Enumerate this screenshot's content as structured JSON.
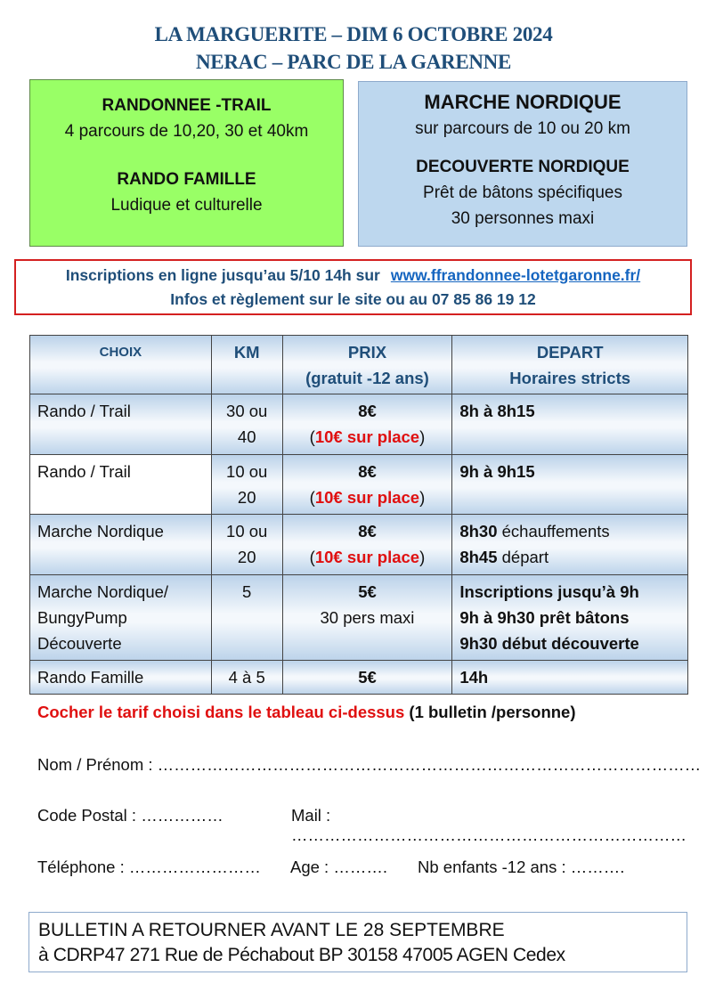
{
  "header": {
    "line1": "LA MARGUERITE – DIM 6  OCTOBRE 2024",
    "line2": "NERAC – PARC DE LA GARENNE"
  },
  "green_box": {
    "title1": "RANDONNEE -TRAIL",
    "text1": "4 parcours de 10,20, 30 et 40km",
    "title2": "RANDO FAMILLE",
    "text2": "Ludique et culturelle",
    "color": "#99ff66"
  },
  "blue_box": {
    "title1": "MARCHE NORDIQUE",
    "text1": "sur parcours de 10 ou 20 km",
    "title2": "DECOUVERTE NORDIQUE",
    "text2": "Prêt de bâtons spécifiques",
    "text3": "30 personnes maxi",
    "color": "#bdd7ee"
  },
  "info": {
    "line1": "Inscriptions en ligne jusqu’au 5/10 14h sur",
    "link": "www.ffrandonnee-lotetgaronne.fr/",
    "line2": "Infos et règlement sur le site ou au 07 85 86 19 12"
  },
  "table": {
    "headers": {
      "choix": "CHOIX",
      "km": "KM",
      "prix": "PRIX",
      "prix_sub": "(gratuit -12 ans)",
      "depart": "DEPART",
      "depart_sub": "Horaires stricts"
    },
    "rows": [
      {
        "choix": "Rando / Trail",
        "km1": "30 ou",
        "km2": "40",
        "prix": "8€",
        "prix_place": "10€ sur place",
        "depart": "8h à 8h15"
      },
      {
        "choix": "Rando / Trail",
        "km1": "10 ou",
        "km2": "20",
        "prix": "8€",
        "prix_place": "10€ sur place",
        "depart": "9h à 9h15"
      },
      {
        "choix": "Marche Nordique",
        "km1": "10 ou",
        "km2": "20",
        "prix": "8€",
        "prix_place": "10€ sur place",
        "depart1_b": "8h30",
        "depart1": " échauffements",
        "depart2_b": "8h45",
        "depart2": " départ"
      },
      {
        "choix1": "Marche Nordique/",
        "choix2": "BungyPump",
        "choix3": "Découverte",
        "km1": "5",
        "prix": "5€",
        "prix_note": "30 pers maxi",
        "depart1": "Inscriptions jusqu’à 9h",
        "depart2": "9h à 9h30 prêt bâtons",
        "depart3": "9h30 début découverte"
      },
      {
        "choix": "Rando Famille",
        "km1": "4 à 5",
        "prix": "5€",
        "depart": "14h"
      }
    ]
  },
  "instruction": {
    "red": "Cocher le tarif choisi dans le tableau ci-dessus",
    "black": " (1 bulletin /personne)"
  },
  "form": {
    "nom": "Nom / Prénom : ………………………………………………………………………………………",
    "cp": "Code Postal : ……………",
    "mail": "Mail : ………………………………………………………………",
    "tel": "Téléphone : ……………………",
    "age": "Age : ……….",
    "enfants": "Nb enfants -12 ans : ………."
  },
  "return": {
    "line1": "BULLETIN A RETOURNER AVANT LE 28 SEPTEMBRE",
    "line2": "à CDRP47  271 Rue de Péchabout  BP 30158 47005 AGEN Cedex"
  }
}
